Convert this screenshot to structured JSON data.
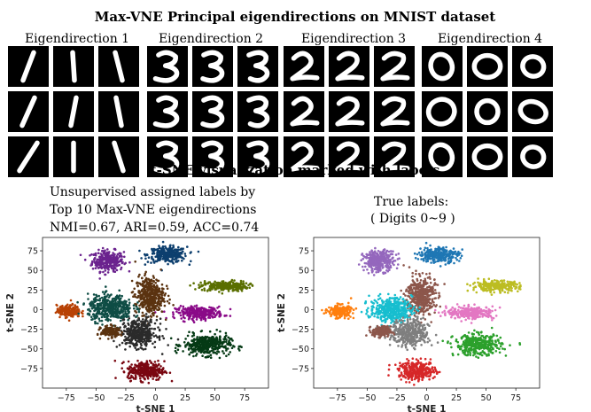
{
  "figure": {
    "title": "Max-VNE Principal eigendirections on MNIST dataset",
    "eigendirections": [
      {
        "label": "Eigendirection 1",
        "digit": "1"
      },
      {
        "label": "Eigendirection 2",
        "digit": "3"
      },
      {
        "label": "Eigendirection 3",
        "digit": "2"
      },
      {
        "label": "Eigendirection 4",
        "digit": "0"
      }
    ],
    "tsne_title": "t-SNE visualization marked with labels"
  },
  "colors": {
    "unsupervised": [
      "#6b238e",
      "#0d3f6e",
      "#5a6f00",
      "#8a0a88",
      "#053a15",
      "#7a0711",
      "#5b3310",
      "#b84205",
      "#0f4d45",
      "#2b2b2b"
    ],
    "true": [
      "#1f77b4",
      "#ff7f0e",
      "#2ca02c",
      "#d62728",
      "#9467bd",
      "#8c564b",
      "#e377c2",
      "#7f7f7f",
      "#bcbd22",
      "#17becf"
    ]
  },
  "chart_data": [
    {
      "type": "scatter",
      "panel": "left",
      "caption_lines": [
        "Unsupervised assigned labels by",
        "Top 10 Max-VNE eigendirections",
        "NMI=0.67, ARI=0.59, ACC=0.74"
      ],
      "xlabel": "t-SNE 1",
      "ylabel": "t-SNE 2",
      "xlim": [
        -95,
        95
      ],
      "ylim": [
        -100,
        92
      ],
      "xticks": [
        -75,
        -50,
        -25,
        0,
        25,
        50,
        75
      ],
      "yticks": [
        -75,
        -50,
        -25,
        0,
        25,
        50,
        75
      ],
      "clusters": [
        {
          "name": "cluster-purple",
          "cx": -40,
          "cy": 62,
          "rx": 12,
          "ry": 12,
          "color": "#6b238e"
        },
        {
          "name": "cluster-navy",
          "cx": 10,
          "cy": 70,
          "rx": 15,
          "ry": 9,
          "color": "#0d3f6e"
        },
        {
          "name": "cluster-olive",
          "cx": 58,
          "cy": 30,
          "rx": 18,
          "ry": 6,
          "color": "#5a6f00"
        },
        {
          "name": "cluster-magenta",
          "cx": 37,
          "cy": -4,
          "rx": 18,
          "ry": 7,
          "color": "#8a0a88"
        },
        {
          "name": "cluster-darkgreen",
          "cx": 43,
          "cy": -45,
          "rx": 18,
          "ry": 12,
          "color": "#053a15"
        },
        {
          "name": "cluster-darkred",
          "cx": -8,
          "cy": -78,
          "rx": 14,
          "ry": 11,
          "color": "#7a0711"
        },
        {
          "name": "cluster-brown",
          "cx": -5,
          "cy": 18,
          "rx": 11,
          "ry": 22,
          "color": "#5b3310"
        },
        {
          "name": "cluster-orange",
          "cx": -73,
          "cy": -2,
          "rx": 9,
          "ry": 7,
          "color": "#b84205"
        },
        {
          "name": "cluster-teal",
          "cx": -38,
          "cy": 2,
          "rx": 17,
          "ry": 15,
          "color": "#0f4d45"
        },
        {
          "name": "cluster-charcoal",
          "cx": -14,
          "cy": -30,
          "rx": 14,
          "ry": 16,
          "color": "#2b2b2b"
        },
        {
          "name": "cluster-brown-2",
          "cx": -38,
          "cy": -28,
          "rx": 7,
          "ry": 6,
          "color": "#5b3310"
        }
      ]
    },
    {
      "type": "scatter",
      "panel": "right",
      "caption_lines": [
        "True labels:",
        "( Digits 0~9 )"
      ],
      "xlabel": "t-SNE 1",
      "ylabel": "t-SNE 2",
      "xlim": [
        -95,
        95
      ],
      "ylim": [
        -100,
        92
      ],
      "xticks": [
        -75,
        -50,
        -25,
        0,
        25,
        50,
        75
      ],
      "yticks": [
        -75,
        -50,
        -25,
        0,
        25,
        50,
        75
      ],
      "clusters": [
        {
          "name": "cluster-purple",
          "cx": -40,
          "cy": 62,
          "rx": 12,
          "ry": 12,
          "color": "#9467bd"
        },
        {
          "name": "cluster-blue",
          "cx": 10,
          "cy": 70,
          "rx": 15,
          "ry": 9,
          "color": "#1f77b4"
        },
        {
          "name": "cluster-olive",
          "cx": 58,
          "cy": 30,
          "rx": 18,
          "ry": 6,
          "color": "#bcbd22"
        },
        {
          "name": "cluster-pink",
          "cx": 37,
          "cy": -4,
          "rx": 18,
          "ry": 7,
          "color": "#e377c2"
        },
        {
          "name": "cluster-green",
          "cx": 43,
          "cy": -45,
          "rx": 18,
          "ry": 12,
          "color": "#2ca02c"
        },
        {
          "name": "cluster-red",
          "cx": -8,
          "cy": -78,
          "rx": 14,
          "ry": 11,
          "color": "#d62728"
        },
        {
          "name": "cluster-brown",
          "cx": -5,
          "cy": 18,
          "rx": 11,
          "ry": 22,
          "color": "#8c564b"
        },
        {
          "name": "cluster-orange",
          "cx": -73,
          "cy": -2,
          "rx": 9,
          "ry": 7,
          "color": "#ff7f0e"
        },
        {
          "name": "cluster-cyan",
          "cx": -30,
          "cy": 0,
          "rx": 16,
          "ry": 14,
          "color": "#17becf"
        },
        {
          "name": "cluster-gray",
          "cx": -14,
          "cy": -30,
          "rx": 14,
          "ry": 16,
          "color": "#7f7f7f"
        },
        {
          "name": "cluster-brown-2",
          "cx": -38,
          "cy": -28,
          "rx": 7,
          "ry": 6,
          "color": "#8c564b"
        }
      ]
    }
  ]
}
